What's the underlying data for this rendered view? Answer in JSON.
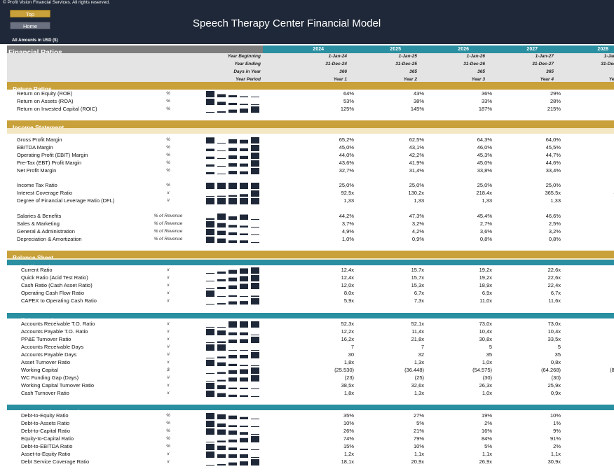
{
  "header": {
    "copyright": "© Profit Vision Financial Services. All rights reserved.",
    "top_button": "Top",
    "home_button": "Home",
    "title": "Speech Therapy Center Financial Model",
    "amounts_note": "All Amounts in  USD ($)"
  },
  "colors": {
    "dark": "#1f2838",
    "gold": "#c9a13a",
    "teal": "#2a8fa0",
    "bar": "#1f2838"
  },
  "table": {
    "title": "Financial Ratios",
    "years": [
      "2024",
      "2025",
      "2026",
      "2027",
      "2028"
    ],
    "meta": [
      {
        "label": "Year Beginning",
        "values": [
          "1-Jan-24",
          "1-Jan-25",
          "1-Jan-26",
          "1-Jan-27",
          "1-Jan-28"
        ]
      },
      {
        "label": "Year Ending",
        "values": [
          "31-Dec-24",
          "31-Dec-25",
          "31-Dec-26",
          "31-Dec-27",
          "31-Dec-28"
        ]
      },
      {
        "label": "Days in Year",
        "values": [
          "366",
          "365",
          "365",
          "365",
          "366"
        ]
      },
      {
        "label": "Year Period",
        "values": [
          "Year 1",
          "Year 2",
          "Year 3",
          "Year 4",
          "Year 5"
        ]
      }
    ]
  },
  "sections": {
    "return": "Return Ratios",
    "income": "Income Statement",
    "balance": "Balance Sheet",
    "liquidity": "Liquidity Ratios",
    "efficiency": "Efficiency Ratios",
    "leverage": "Leverage (Solvency) Ratios"
  },
  "rows": [
    {
      "label": "Return on Equity (ROE)",
      "unit": "%",
      "values": [
        "64%",
        "43%",
        "36%",
        "29%",
        "27%"
      ],
      "spark": [
        64,
        43,
        36,
        29,
        27
      ]
    },
    {
      "label": "Return on Assets (ROA)",
      "unit": "%",
      "values": [
        "53%",
        "38%",
        "33%",
        "28%",
        "26%"
      ],
      "spark": [
        53,
        38,
        33,
        28,
        26
      ]
    },
    {
      "label": "Return on Invested Capital (ROIC)",
      "unit": "%",
      "values": [
        "125%",
        "145%",
        "187%",
        "215%",
        "272%"
      ],
      "spark": [
        125,
        145,
        187,
        215,
        272
      ]
    },
    {
      "label": "Gross Profit Margin",
      "unit": "%",
      "values": [
        "65,2%",
        "62,5%",
        "64,3%",
        "64,0%",
        "65,3%"
      ],
      "spark": [
        65.2,
        62.5,
        64.3,
        64.0,
        65.3
      ]
    },
    {
      "label": "EBITDA Margin",
      "unit": "%",
      "values": [
        "45,0%",
        "43,1%",
        "46,0%",
        "45,5%",
        "49,1%"
      ],
      "spark": [
        45.0,
        43.1,
        46.0,
        45.5,
        49.1
      ]
    },
    {
      "label": "Operating Profit (EBIT) Margin",
      "unit": "%",
      "values": [
        "44,0%",
        "42,2%",
        "45,3%",
        "44,7%",
        "48,4%"
      ],
      "spark": [
        44.0,
        42.2,
        45.3,
        44.7,
        48.4
      ]
    },
    {
      "label": "Pre-Tax (EBT) Profit Margin",
      "unit": "%",
      "values": [
        "43,6%",
        "41,9%",
        "45,0%",
        "44,6%",
        "48,3%"
      ],
      "spark": [
        43.6,
        41.9,
        45.0,
        44.6,
        48.3
      ]
    },
    {
      "label": "Net Profit Margin",
      "unit": "%",
      "values": [
        "32,7%",
        "31,4%",
        "33,8%",
        "33,4%",
        "36,3%"
      ],
      "spark": [
        32.7,
        31.4,
        33.8,
        33.4,
        36.3
      ]
    },
    {
      "label": "Income Tax Ratio",
      "unit": "%",
      "values": [
        "25,0%",
        "25,0%",
        "25,0%",
        "25,0%",
        "25,0%"
      ],
      "spark": [
        25,
        25,
        25,
        25,
        25
      ]
    },
    {
      "label": "Interest Coverage Ratio",
      "unit": "x",
      "values": [
        "92,5x",
        "130,2x",
        "218,4x",
        "365,5x",
        "899,8x"
      ],
      "spark": [
        92.5,
        130.2,
        218.4,
        365.5,
        899.8
      ]
    },
    {
      "label": "Degree of Financial Leverage Ratio (DFL)",
      "unit": "#",
      "values": [
        "1,33",
        "1,33",
        "1,33",
        "1,33",
        "1,33"
      ],
      "spark": [
        1.33,
        1.33,
        1.33,
        1.33,
        1.33
      ]
    },
    {
      "label": "Salaries & Benefits",
      "unit": "% of Revenue",
      "values": [
        "44,2%",
        "47,3%",
        "45,4%",
        "46,6%",
        "43,6%"
      ],
      "spark": [
        44.2,
        47.3,
        45.4,
        46.6,
        43.6
      ]
    },
    {
      "label": "Sales & Marketing",
      "unit": "% of Revenue",
      "values": [
        "3,7%",
        "3,2%",
        "2,7%",
        "2,5%",
        "2,2%"
      ],
      "spark": [
        3.7,
        3.2,
        2.7,
        2.5,
        2.2
      ]
    },
    {
      "label": "General & Administration",
      "unit": "% of Revenue",
      "values": [
        "4,9%",
        "4,2%",
        "3,6%",
        "3,2%",
        "2,8%"
      ],
      "spark": [
        4.9,
        4.2,
        3.6,
        3.2,
        2.8
      ]
    },
    {
      "label": "Depreciation & Amortization",
      "unit": "% of Revenue",
      "values": [
        "1,0%",
        "0,9%",
        "0,8%",
        "0,8%",
        "0,7%"
      ],
      "spark": [
        1.0,
        0.9,
        0.8,
        0.8,
        0.7
      ]
    },
    {
      "label": "Current Ratio",
      "unit": "x",
      "values": [
        "12,4x",
        "15,7x",
        "19,2x",
        "22,6x",
        "24,8x"
      ],
      "spark": [
        12.4,
        15.7,
        19.2,
        22.6,
        24.8
      ]
    },
    {
      "label": "Quick Ratio (Acid Test Ratio)",
      "unit": "x",
      "values": [
        "12,4x",
        "15,7x",
        "19,2x",
        "22,6x",
        "24,8x"
      ],
      "spark": [
        12.4,
        15.7,
        19.2,
        22.6,
        24.8
      ]
    },
    {
      "label": "Cash Ratio (Cash Asset Ratio)",
      "unit": "x",
      "values": [
        "12,0x",
        "15,3x",
        "18,9x",
        "22,4x",
        "24,6x"
      ],
      "spark": [
        12.0,
        15.3,
        18.9,
        22.4,
        24.6
      ]
    },
    {
      "label": "Operating Cash Flow Ratio",
      "unit": "x",
      "values": [
        "8,0x",
        "6,7x",
        "6,9x",
        "6,7x",
        "6,8x"
      ],
      "spark": [
        8.0,
        6.7,
        6.9,
        6.7,
        6.8
      ]
    },
    {
      "label": "CAPEX to Operating Cash Ratio",
      "unit": "x",
      "values": [
        "5,9x",
        "7,3x",
        "11,0x",
        "11,6x",
        "17,6x"
      ],
      "spark": [
        5.9,
        7.3,
        11.0,
        11.6,
        17.6
      ]
    },
    {
      "label": "Accounts Receivable T.O. Ratio",
      "unit": "x",
      "values": [
        "52,3x",
        "52,1x",
        "73,0x",
        "73,0x",
        "73,2x"
      ],
      "spark": [
        52.3,
        52.1,
        73.0,
        73.0,
        73.2
      ]
    },
    {
      "label": "Accounts Payable T.O. Ratio",
      "unit": "x",
      "values": [
        "12,2x",
        "11,4x",
        "10,4x",
        "10,4x",
        "9,2x"
      ],
      "spark": [
        12.2,
        11.4,
        10.4,
        10.4,
        9.2
      ]
    },
    {
      "label": "PP&E Turnover Ratio",
      "unit": "x",
      "values": [
        "16,2x",
        "21,8x",
        "30,8x",
        "33,5x",
        "46,6x"
      ],
      "spark": [
        16.2,
        21.8,
        30.8,
        33.5,
        46.6
      ]
    },
    {
      "label": "Accounts Receivable Days",
      "unit": "#",
      "values": [
        "7",
        "7",
        "5",
        "5",
        "5"
      ],
      "spark": [
        7,
        7,
        5,
        5,
        5
      ]
    },
    {
      "label": "Accounts Payable Days",
      "unit": "#",
      "values": [
        "30",
        "32",
        "35",
        "35",
        "40"
      ],
      "spark": [
        30,
        32,
        35,
        35,
        40
      ]
    },
    {
      "label": "Asset Turnover Ratio",
      "unit": "x",
      "values": [
        "1,8x",
        "1,3x",
        "1,0x",
        "0,8x",
        "0,7x"
      ],
      "spark": [
        1.8,
        1.3,
        1.0,
        0.8,
        0.7
      ]
    },
    {
      "label": "Working Capital",
      "unit": "$",
      "values": [
        "(25.530)",
        "(36.448)",
        "(54.575)",
        "(64.268)",
        "(81.767)"
      ],
      "spark": [
        25530,
        36448,
        54575,
        64268,
        81767
      ]
    },
    {
      "label": "WC Funding Gap (Days)",
      "unit": "#",
      "values": [
        "(23)",
        "(25)",
        "(30)",
        "(30)",
        "(35)"
      ],
      "spark": [
        23,
        25,
        30,
        30,
        35
      ]
    },
    {
      "label": "Working Capital Turnover Ratio",
      "unit": "x",
      "values": [
        "38,5x",
        "32,6x",
        "26,3x",
        "25,9x",
        "23,8x"
      ],
      "spark": [
        38.5,
        32.6,
        26.3,
        25.9,
        23.8
      ]
    },
    {
      "label": "Cash Turnover Ratio",
      "unit": "x",
      "values": [
        "1,8x",
        "1,3x",
        "1,0x",
        "0,9x",
        "0,7x"
      ],
      "spark": [
        1.8,
        1.3,
        1.0,
        0.9,
        0.7
      ]
    },
    {
      "label": "Debt-to-Equity Ratio",
      "unit": "%",
      "values": [
        "35%",
        "27%",
        "19%",
        "10%",
        "0%"
      ],
      "spark": [
        35,
        27,
        19,
        10,
        0
      ]
    },
    {
      "label": "Debt-to-Assets Ratio",
      "unit": "%",
      "values": [
        "10%",
        "5%",
        "2%",
        "1%",
        "0%"
      ],
      "spark": [
        10,
        5,
        2,
        1,
        0
      ]
    },
    {
      "label": "Debt-to-Capital Ratio",
      "unit": "%",
      "values": [
        "26%",
        "21%",
        "16%",
        "9%",
        "0%"
      ],
      "spark": [
        26,
        21,
        16,
        9,
        0
      ]
    },
    {
      "label": "Equity-to-Capital Ratio",
      "unit": "%",
      "values": [
        "74%",
        "79%",
        "84%",
        "91%",
        "100%"
      ],
      "spark": [
        74,
        79,
        84,
        91,
        100
      ]
    },
    {
      "label": "Debt-to-EBITDA Ratio",
      "unit": "%",
      "values": [
        "15%",
        "10%",
        "5%",
        "2%",
        "0%"
      ],
      "spark": [
        15,
        10,
        5,
        2,
        0
      ]
    },
    {
      "label": "Asset-to-Equity Ratio",
      "unit": "x",
      "values": [
        "1,2x",
        "1,1x",
        "1,1x",
        "1,1x",
        "1,0x"
      ],
      "spark": [
        1.2,
        1.1,
        1.1,
        1.1,
        1.0
      ]
    },
    {
      "label": "Debt Service Coverage Ratio",
      "unit": "x",
      "values": [
        "18,1x",
        "20,9x",
        "26,9x",
        "30,9x",
        "39,0x"
      ],
      "spark": [
        18.1,
        20.9,
        26.9,
        30.9,
        39.0
      ]
    }
  ]
}
